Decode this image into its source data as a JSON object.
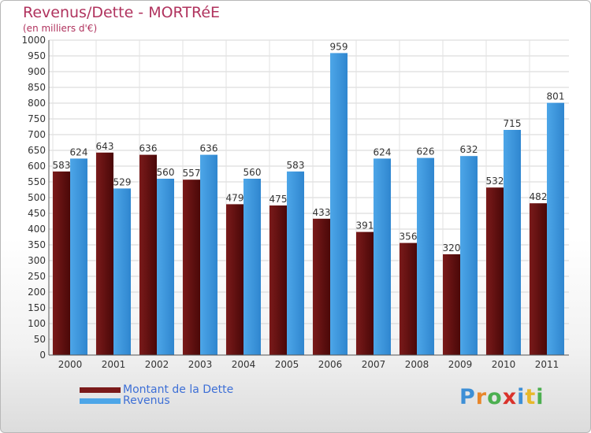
{
  "chart_data": {
    "type": "bar",
    "title": "Revenus/Dette - MORTRéE",
    "subtitle": "(en milliers d'€)",
    "categories": [
      "2000",
      "2001",
      "2002",
      "2003",
      "2004",
      "2005",
      "2006",
      "2007",
      "2008",
      "2009",
      "2010",
      "2011"
    ],
    "series": [
      {
        "name": "Montant de la Dette",
        "color": "#7a1a1a",
        "values": [
          583,
          643,
          636,
          557,
          479,
          475,
          433,
          391,
          356,
          320,
          532,
          482
        ]
      },
      {
        "name": "Revenus",
        "color": "#4da6e8",
        "values": [
          624,
          529,
          560,
          636,
          560,
          583,
          959,
          624,
          626,
          632,
          715,
          801
        ]
      }
    ],
    "ylim": [
      0,
      1000
    ],
    "ytick_step": 50,
    "yticks": [
      "0",
      "50",
      "100",
      "150",
      "200",
      "250",
      "300",
      "350",
      "400",
      "450",
      "500",
      "550",
      "600",
      "650",
      "700",
      "750",
      "800",
      "850",
      "900",
      "950",
      "1000"
    ],
    "xlabel": "",
    "ylabel": "",
    "grid": true,
    "legend_position": "bottom-left"
  },
  "brand": {
    "logo_text": "Proxiti"
  }
}
